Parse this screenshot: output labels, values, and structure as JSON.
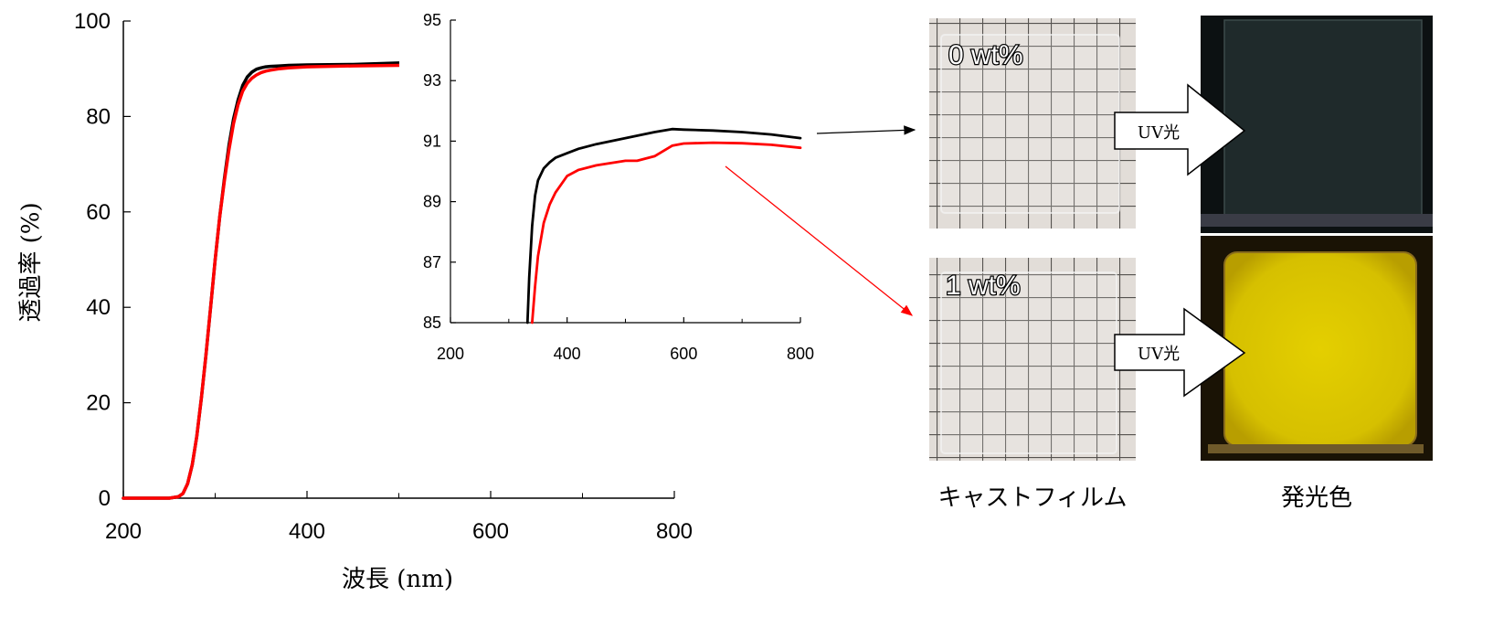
{
  "chart_data": [
    {
      "type": "line",
      "title": "",
      "xlabel": "波長 (nm)",
      "ylabel": "透過率 (%)",
      "xlim": [
        200,
        800
      ],
      "ylim": [
        0,
        100
      ],
      "xticks": [
        "200",
        "400",
        "600",
        "800"
      ],
      "yticks": [
        "0",
        "20",
        "40",
        "60",
        "80",
        "100"
      ],
      "series": [
        {
          "color": "#000000",
          "x": [
            200,
            250,
            260,
            265,
            270,
            275,
            280,
            285,
            290,
            295,
            300,
            305,
            310,
            315,
            320,
            325,
            330,
            335,
            340,
            345,
            350,
            355,
            360,
            370,
            380,
            400,
            450,
            500
          ],
          "y": [
            0,
            0,
            0.3,
            1,
            3,
            7,
            13,
            21,
            30,
            40,
            50,
            59,
            67,
            74,
            79.5,
            83.5,
            86.5,
            88.3,
            89.3,
            89.9,
            90.2,
            90.4,
            90.5,
            90.6,
            90.7,
            90.8,
            90.9,
            91.2
          ]
        },
        {
          "color": "#ff0000",
          "x": [
            200,
            250,
            260,
            265,
            270,
            275,
            280,
            285,
            290,
            295,
            300,
            305,
            310,
            315,
            320,
            325,
            330,
            335,
            340,
            345,
            350,
            355,
            360,
            370,
            380,
            400,
            450,
            500
          ],
          "y": [
            0,
            0,
            0.3,
            1,
            3,
            7,
            13,
            21,
            30,
            40,
            50,
            59,
            66.5,
            73,
            78.5,
            82.5,
            85.3,
            87,
            88,
            88.7,
            89.2,
            89.5,
            89.7,
            90,
            90.2,
            90.4,
            90.6,
            90.7
          ]
        }
      ]
    },
    {
      "type": "line",
      "title": "",
      "xlabel": "",
      "ylabel": "",
      "xlim": [
        200,
        800
      ],
      "ylim": [
        85,
        95
      ],
      "xticks": [
        "200",
        "400",
        "600",
        "800"
      ],
      "yticks": [
        "85",
        "87",
        "89",
        "91",
        "93",
        "95"
      ],
      "series": [
        {
          "color": "#000000",
          "x": [
            332,
            335,
            340,
            345,
            350,
            360,
            370,
            380,
            400,
            420,
            450,
            500,
            550,
            580,
            600,
            650,
            700,
            750,
            800
          ],
          "y": [
            85,
            86.5,
            88.2,
            89.2,
            89.7,
            90.1,
            90.3,
            90.45,
            90.6,
            90.75,
            90.9,
            91.1,
            91.3,
            91.4,
            91.38,
            91.35,
            91.3,
            91.22,
            91.1
          ]
        },
        {
          "color": "#ff0000",
          "x": [
            340,
            345,
            350,
            360,
            370,
            380,
            400,
            420,
            450,
            500,
            520,
            550,
            580,
            600,
            650,
            700,
            750,
            800
          ],
          "y": [
            85,
            86.2,
            87.2,
            88.3,
            88.9,
            89.3,
            89.85,
            90.05,
            90.2,
            90.35,
            90.35,
            90.5,
            90.85,
            90.92,
            90.95,
            90.93,
            90.88,
            90.78
          ]
        }
      ]
    }
  ],
  "photos": {
    "samples": [
      {
        "label": "0 wt%",
        "arrow_text": "UV光",
        "emission_color": "#1f2a2b"
      },
      {
        "label": "1 wt%",
        "arrow_text": "UV光",
        "emission_color": "#d8c400"
      }
    ],
    "cast_film_caption": "キャストフィルム",
    "emission_caption": "発光色"
  },
  "colors": {
    "black_series": "#000000",
    "red_series": "#ff0000",
    "grid_lines": "#555555",
    "film_background": "#e0dcd8"
  }
}
